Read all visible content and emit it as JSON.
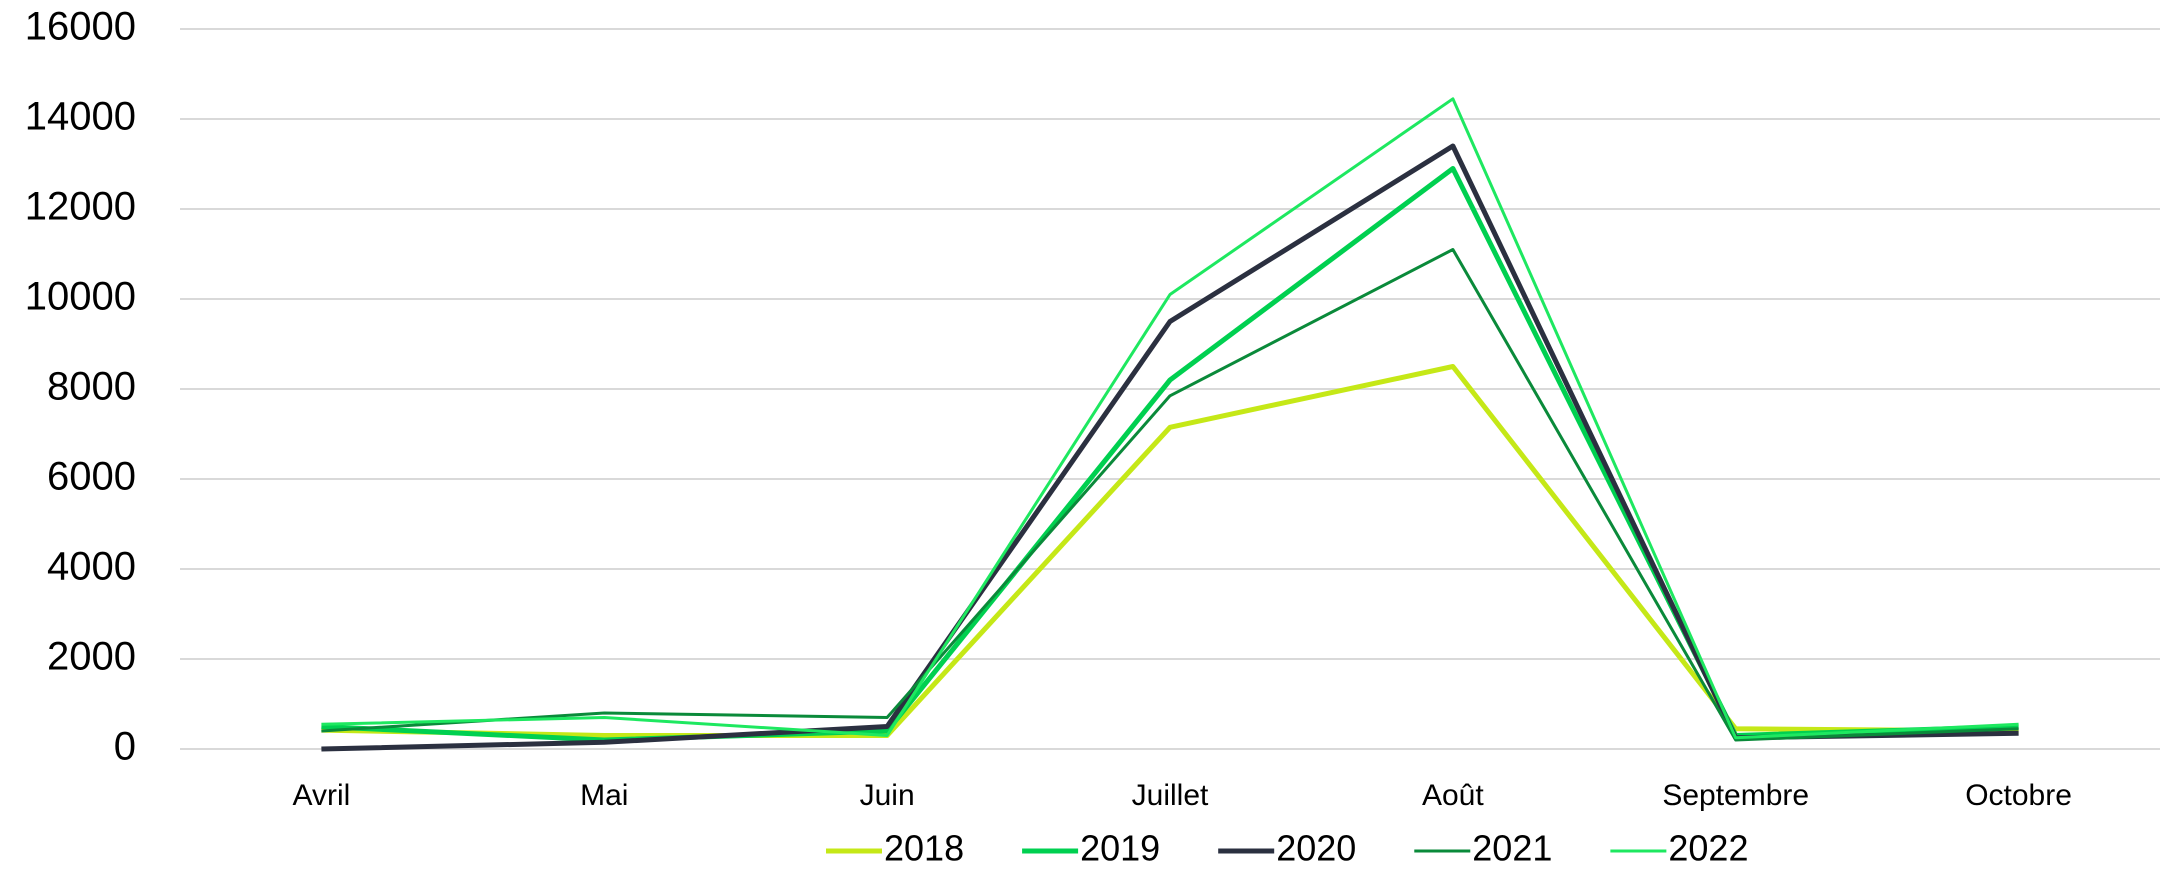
{
  "chart_data": {
    "type": "line",
    "categories": [
      "Avril",
      "Mai",
      "Juin",
      "Juillet",
      "Août",
      "Septembre",
      "Octobre"
    ],
    "series": [
      {
        "name": "2018",
        "color": "#c5e817",
        "values": [
          420,
          300,
          300,
          7150,
          8500,
          450,
          400
        ]
      },
      {
        "name": "2019",
        "color": "#00d050",
        "values": [
          500,
          200,
          400,
          8200,
          12900,
          300,
          500
        ]
      },
      {
        "name": "2020",
        "color": "#2b3040",
        "values": [
          0,
          150,
          500,
          9500,
          13400,
          250,
          350
        ]
      },
      {
        "name": "2021",
        "color": "#0a8a3a",
        "values": [
          400,
          800,
          700,
          7850,
          11100,
          200,
          450
        ]
      },
      {
        "name": "2022",
        "color": "#1ee860",
        "values": [
          550,
          700,
          300,
          10100,
          14450,
          250,
          550
        ]
      }
    ],
    "ylim": [
      0,
      16000
    ],
    "yticks": [
      0,
      2000,
      4000,
      6000,
      8000,
      10000,
      12000,
      14000,
      16000
    ],
    "grid": true,
    "legend": "bottom"
  }
}
